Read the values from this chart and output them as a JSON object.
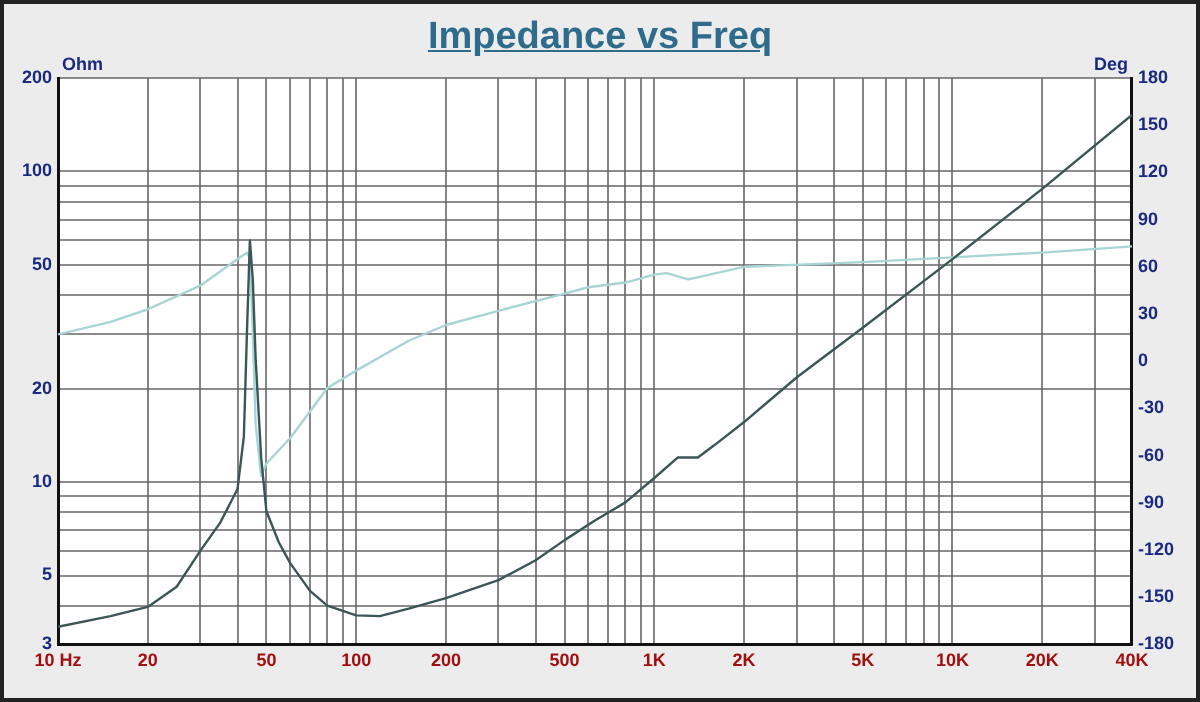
{
  "chart_data": {
    "type": "line",
    "title": "Impedance vs Freq",
    "ylabel": "Ohm",
    "y2label": "Deg",
    "log": "xy",
    "grid": true,
    "legend": false,
    "marker": "none",
    "line_style": "solid",
    "xlim": [
      10,
      40000
    ],
    "xticks": [
      {
        "value": 10,
        "label": "10 Hz"
      },
      20,
      {
        "value": 30,
        "label": null
      },
      {
        "value": 40,
        "label": null
      },
      50,
      {
        "value": 60,
        "label": null
      },
      {
        "value": 70,
        "label": null
      },
      {
        "value": 80,
        "label": null
      },
      {
        "value": 90,
        "label": null
      },
      100,
      200,
      {
        "value": 300,
        "label": null
      },
      {
        "value": 400,
        "label": null
      },
      500,
      {
        "value": 600,
        "label": null
      },
      {
        "value": 700,
        "label": null
      },
      {
        "value": 800,
        "label": null
      },
      {
        "value": 900,
        "label": null
      },
      {
        "value": 1000,
        "label": "1K"
      },
      {
        "value": 2000,
        "label": "2K"
      },
      {
        "value": 3000,
        "label": null
      },
      {
        "value": 4000,
        "label": null
      },
      {
        "value": 5000,
        "label": "5K"
      },
      {
        "value": 6000,
        "label": null
      },
      {
        "value": 7000,
        "label": null
      },
      {
        "value": 8000,
        "label": null
      },
      {
        "value": 9000,
        "label": null
      },
      {
        "value": 10000,
        "label": "10K"
      },
      {
        "value": 20000,
        "label": "20K"
      },
      {
        "value": 30000,
        "label": null
      },
      {
        "value": 40000,
        "label": "40K"
      }
    ],
    "ylim": [
      3,
      200
    ],
    "yticks": [
      3,
      {
        "value": 4,
        "label": null
      },
      5,
      {
        "value": 6,
        "label": null
      },
      {
        "value": 7,
        "label": null
      },
      {
        "value": 8,
        "label": null
      },
      {
        "value": 9,
        "label": null
      },
      10,
      20,
      {
        "value": 30,
        "label": null
      },
      {
        "value": 40,
        "label": null
      },
      50,
      {
        "value": 60,
        "label": null
      },
      {
        "value": 70,
        "label": null
      },
      {
        "value": 80,
        "label": null
      },
      {
        "value": 90,
        "label": null
      },
      100,
      200
    ],
    "y2lim": [
      -180,
      180
    ],
    "y2ticks": [
      -180,
      -150,
      -120,
      -90,
      -60,
      -30,
      0,
      30,
      60,
      90,
      120,
      150,
      180
    ],
    "series": [
      {
        "color": "#3a5656",
        "x": [
          10,
          15,
          20,
          25,
          30,
          35,
          40,
          42,
          43,
          44,
          45,
          46,
          48,
          50,
          55,
          60,
          70,
          80,
          100,
          120,
          150,
          200,
          300,
          400,
          500,
          630,
          800,
          1000,
          1200,
          1400,
          1600,
          2000,
          3000,
          5000,
          10000,
          20000,
          40000
        ],
        "values": [
          3.42,
          3.7,
          3.96,
          4.6,
          6.0,
          7.4,
          9.5,
          14,
          30,
          60,
          45,
          25,
          12,
          8.05,
          6.4,
          5.49,
          4.46,
          4.0,
          3.72,
          3.7,
          3.91,
          4.23,
          4.83,
          5.6,
          6.5,
          7.5,
          8.6,
          10.3,
          12,
          12,
          13.2,
          15.6,
          21.7,
          31.4,
          52.2,
          87.9,
          152
        ]
      },
      {
        "color": "#a8d4d4",
        "axis": "y2",
        "x": [
          10,
          15,
          20,
          30,
          40,
          43,
          44,
          45,
          46,
          48,
          50,
          60,
          70,
          80,
          100,
          150,
          200,
          300,
          500,
          600,
          800,
          1000,
          1100,
          1300,
          2000,
          5000,
          10000,
          20000,
          40000
        ],
        "values": [
          17,
          25,
          33,
          48,
          65,
          69,
          66,
          20,
          -40,
          -73,
          -65,
          -49,
          -32,
          -17,
          -6,
          13,
          23,
          32,
          43,
          47,
          50,
          55,
          56,
          52,
          60,
          63,
          66,
          69,
          73
        ]
      }
    ]
  }
}
